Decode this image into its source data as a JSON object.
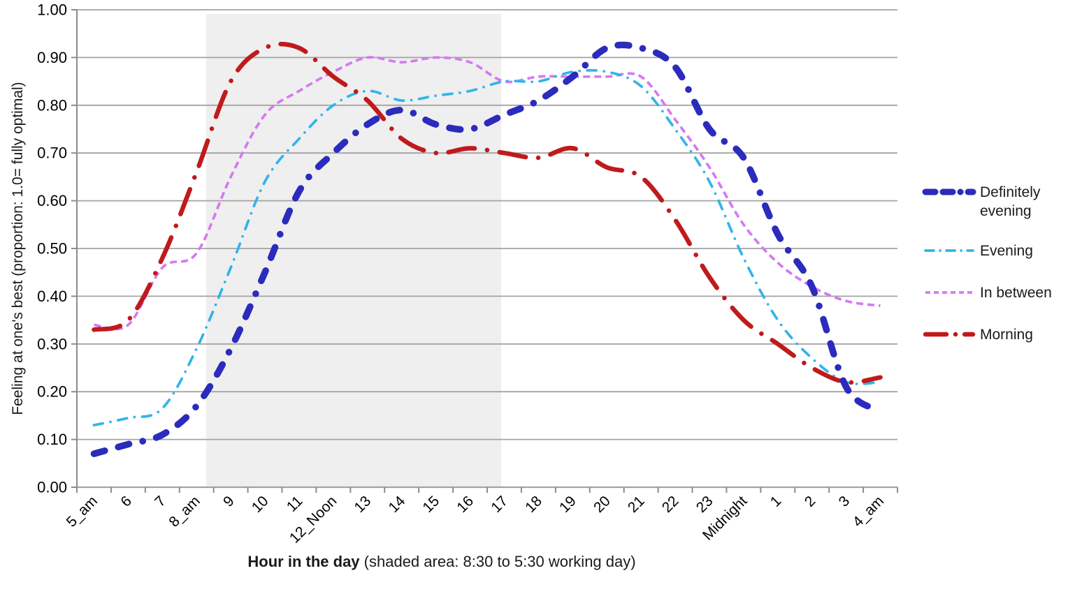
{
  "chart_data": {
    "type": "line",
    "title": "",
    "x_axis": {
      "title_bold": "Hour in the day",
      "title_note": " (shaded area: 8:30 to 5:30 working day)",
      "categories": [
        "5_am",
        "6",
        "7",
        "8_am",
        "9",
        "10",
        "11",
        "12_Noon",
        "13",
        "14",
        "15",
        "16",
        "17",
        "18",
        "19",
        "20",
        "21",
        "22",
        "23",
        "Midnight",
        "1",
        "2",
        "3",
        "4_am"
      ]
    },
    "y_axis": {
      "title": "Feeling at one's best (proportion: 1.0= fully optimal)",
      "min": 0.0,
      "max": 1.0,
      "step": 0.1,
      "ticks": [
        "0.00",
        "0.10",
        "0.20",
        "0.30",
        "0.40",
        "0.50",
        "0.60",
        "0.70",
        "0.80",
        "0.90",
        "1.00"
      ]
    },
    "shaded_area": {
      "note": "8:30 to 5:30 working day",
      "color": "#efefef"
    },
    "grid": true,
    "legend_position": "right",
    "series": [
      {
        "name": "Definitely evening",
        "color": "#2b2bbd",
        "style": "thick-dash-dash-dot",
        "values": [
          0.07,
          0.09,
          0.11,
          0.17,
          0.29,
          0.45,
          0.62,
          0.7,
          0.76,
          0.79,
          0.76,
          0.75,
          0.78,
          0.81,
          0.86,
          0.92,
          0.92,
          0.88,
          0.75,
          0.69,
          0.53,
          0.42,
          0.21,
          0.16
        ]
      },
      {
        "name": "Evening",
        "color": "#31b5e9",
        "style": "dash-dot",
        "values": [
          0.13,
          0.145,
          0.165,
          0.29,
          0.46,
          0.64,
          0.73,
          0.8,
          0.83,
          0.81,
          0.82,
          0.83,
          0.85,
          0.85,
          0.87,
          0.87,
          0.84,
          0.75,
          0.64,
          0.48,
          0.35,
          0.27,
          0.22,
          0.22
        ]
      },
      {
        "name": "In between",
        "color": "#d47af2",
        "style": "small-dash",
        "values": [
          0.34,
          0.34,
          0.46,
          0.49,
          0.65,
          0.78,
          0.83,
          0.87,
          0.9,
          0.89,
          0.9,
          0.89,
          0.85,
          0.86,
          0.86,
          0.86,
          0.86,
          0.77,
          0.67,
          0.55,
          0.47,
          0.42,
          0.39,
          0.38
        ]
      },
      {
        "name": "Morning",
        "color": "#c01a1c",
        "style": "long-dash-dot",
        "values": [
          0.33,
          0.35,
          0.48,
          0.66,
          0.85,
          0.92,
          0.92,
          0.86,
          0.81,
          0.73,
          0.7,
          0.71,
          0.7,
          0.69,
          0.71,
          0.67,
          0.65,
          0.56,
          0.44,
          0.35,
          0.3,
          0.25,
          0.22,
          0.23
        ]
      }
    ]
  }
}
